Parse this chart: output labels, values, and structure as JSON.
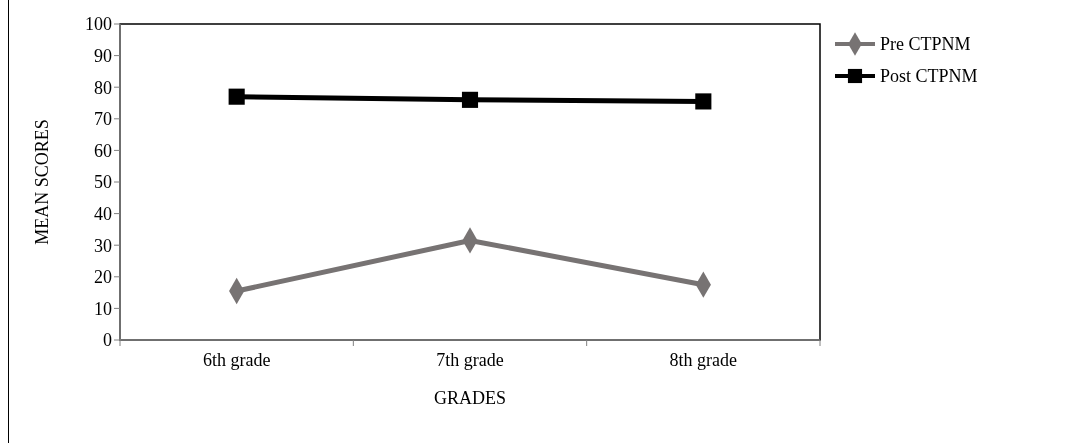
{
  "chart_data": {
    "type": "line",
    "xlabel": "GRADES",
    "ylabel": "MEAN SCORES",
    "categories": [
      "6th grade",
      "7th grade",
      "8th grade"
    ],
    "series": [
      {
        "name": "Pre CTPNM",
        "color": "#777373",
        "marker": "diamond",
        "values": [
          15.5,
          31.5,
          17.5
        ]
      },
      {
        "name": "Post CTPNM",
        "color": "#000000",
        "marker": "square",
        "values": [
          77,
          76,
          75.5
        ]
      }
    ],
    "ylim": [
      0,
      100
    ],
    "yticks": [
      0,
      10,
      20,
      30,
      40,
      50,
      60,
      70,
      80,
      90,
      100
    ],
    "grid": false,
    "legend": "right"
  }
}
